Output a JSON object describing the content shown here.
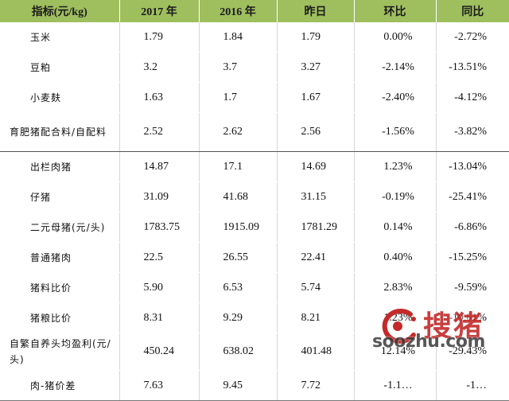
{
  "table": {
    "headers": [
      "指标(元/kg)",
      "2017 年",
      "2016 年",
      "昨日",
      "环比",
      "同比"
    ],
    "rows": [
      {
        "name": "玉米",
        "y2017": "1.79",
        "y2016": "1.84",
        "yesterday": "1.79",
        "mom": "0.00%",
        "yoy": "-2.72%"
      },
      {
        "name": "豆粕",
        "y2017": "3.2",
        "y2016": "3.7",
        "yesterday": "3.27",
        "mom": "-2.14%",
        "yoy": "-13.51%"
      },
      {
        "name": "小麦麸",
        "y2017": "1.63",
        "y2016": "1.7",
        "yesterday": "1.67",
        "mom": "-2.40%",
        "yoy": "-4.12%"
      },
      {
        "name": "育肥猪配合料/自配料",
        "y2017": "2.52",
        "y2016": "2.62",
        "yesterday": "2.56",
        "mom": "-1.56%",
        "yoy": "-3.82%"
      },
      {
        "name": "出栏肉猪",
        "y2017": "14.87",
        "y2016": "17.1",
        "yesterday": "14.69",
        "mom": "1.23%",
        "yoy": "-13.04%"
      },
      {
        "name": "仔猪",
        "y2017": "31.09",
        "y2016": "41.68",
        "yesterday": "31.15",
        "mom": "-0.19%",
        "yoy": "-25.41%"
      },
      {
        "name": "二元母猪(元/头)",
        "y2017": "1783.75",
        "y2016": "1915.09",
        "yesterday": "1781.29",
        "mom": "0.14%",
        "yoy": "-6.86%"
      },
      {
        "name": "普通猪肉",
        "y2017": "22.5",
        "y2016": "26.55",
        "yesterday": "22.41",
        "mom": "0.40%",
        "yoy": "-15.25%"
      },
      {
        "name": "猪料比价",
        "y2017": "5.90",
        "y2016": "6.53",
        "yesterday": "5.74",
        "mom": "2.83%",
        "yoy": "-9.59%"
      },
      {
        "name": "猪粮比价",
        "y2017": "8.31",
        "y2016": "9.29",
        "yesterday": "8.21",
        "mom": "1.23%",
        "yoy": "-10.61%"
      },
      {
        "name": "自繁自养头均盈利(元/头)",
        "y2017": "450.24",
        "y2016": "638.02",
        "yesterday": "401.48",
        "mom": "12.14%",
        "yoy": "-29.43%"
      },
      {
        "name": "肉-猪价差",
        "y2017": "7.63",
        "y2016": "9.45",
        "yesterday": "7.72",
        "mom": "-1.1…",
        "yoy": "-1…"
      }
    ]
  },
  "watermark": {
    "cn": "搜猪",
    "en": "soozhu.com"
  },
  "colors": {
    "header_bg": "#9fbf5f",
    "watermark_red": "#c42a2a"
  }
}
